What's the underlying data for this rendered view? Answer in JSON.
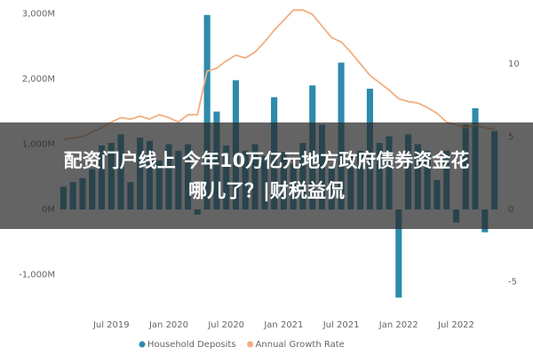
{
  "chart_data": {
    "type": "bar_line",
    "categories": [
      null,
      null,
      null,
      null,
      null,
      "Jul 2019",
      null,
      null,
      null,
      null,
      null,
      "Jan 2020",
      null,
      null,
      null,
      null,
      null,
      "Jul 2020",
      null,
      null,
      null,
      null,
      null,
      "Jan 2021",
      null,
      null,
      null,
      null,
      null,
      "Jul 2021",
      null,
      null,
      null,
      null,
      null,
      "Jan 2022",
      null,
      null,
      null,
      null,
      null,
      "Jul 2022",
      null,
      null,
      null,
      null
    ],
    "series": [
      {
        "name": "Household Deposits",
        "color": "#2e8bab",
        "type": "bar",
        "axis": "y",
        "values": [
          350,
          420,
          480,
          620,
          980,
          1020,
          1150,
          420,
          1100,
          1050,
          750,
          1000,
          900,
          1000,
          -80,
          2980,
          1500,
          980,
          1980,
          900,
          1000,
          820,
          1720,
          880,
          700,
          1020,
          1900,
          1300,
          650,
          2250,
          820,
          900,
          1850,
          1020,
          1120,
          -1350,
          1150,
          1000,
          900,
          450,
          900,
          -200,
          1300,
          1550,
          -350,
          1200
        ]
      },
      {
        "name": "Annual Growth Rate",
        "color": "#f2ae7e",
        "type": "line",
        "axis": "y2",
        "values": [
          4.8,
          4.9,
          5.0,
          5.3,
          5.6,
          6.0,
          6.3,
          6.2,
          6.4,
          6.2,
          6.5,
          6.3,
          6.0,
          6.5,
          6.5,
          9.5,
          9.7,
          10.2,
          10.6,
          10.4,
          10.8,
          11.5,
          12.3,
          13.0,
          13.7,
          13.7,
          13.4,
          12.6,
          11.8,
          11.5,
          10.8,
          10.0,
          9.2,
          8.7,
          8.2,
          7.6,
          7.4,
          7.3,
          7.0,
          6.6,
          6.0,
          5.8,
          5.6,
          5.8,
          5.6,
          5.5
        ]
      }
    ],
    "ylim": [
      -1400,
      3100
    ],
    "yticks": [
      {
        "value": -1000,
        "label": "-1,000M"
      },
      {
        "value": 0,
        "label": "0M"
      },
      {
        "value": 1000,
        "label": "1,000M"
      },
      {
        "value": 2000,
        "label": "2,000M"
      },
      {
        "value": 3000,
        "label": "3,000M"
      }
    ],
    "y2lim": [
      -6.3,
      13.9
    ],
    "y2ticks": [
      -5,
      0,
      5,
      10
    ],
    "legend": "bottom"
  },
  "overlay": {
    "lines": [
      "配资门户线上 今年10万亿元地方政府债券资金花",
      "哪儿了？|财税益侃"
    ]
  }
}
